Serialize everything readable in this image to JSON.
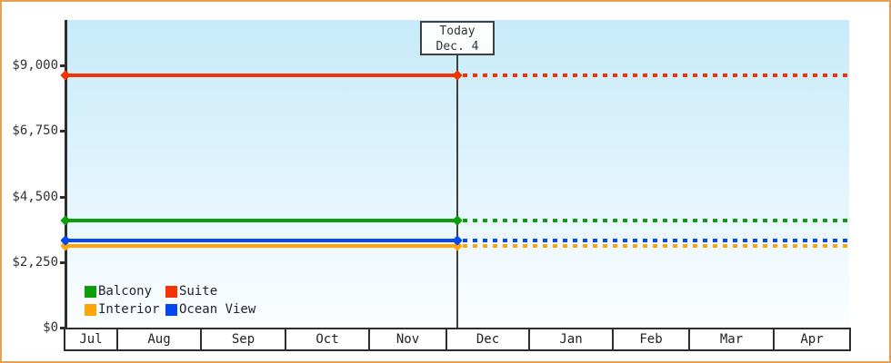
{
  "page": {
    "border_color": "#e2a155",
    "axis_color": "#2e2e2e",
    "plot_bg_top": "#c7eafa",
    "plot_bg_bottom": "#fcfeff"
  },
  "today": {
    "line1": "Today",
    "line2": "Dec. 4"
  },
  "chart_data": {
    "type": "line",
    "title": "",
    "x_categories": [
      "Jul",
      "Aug",
      "Sep",
      "Oct",
      "Nov",
      "Dec",
      "Jan",
      "Feb",
      "Mar",
      "Apr"
    ],
    "y_ticks": [
      {
        "label": "$9,000",
        "value": 9000
      },
      {
        "label": "$6,750",
        "value": 6750
      },
      {
        "label": "$4,500",
        "value": 4500
      },
      {
        "label": "$2,250",
        "value": 2250
      },
      {
        "label": "$0",
        "value": 0
      }
    ],
    "ylim": [
      0,
      9000
    ],
    "grid": false,
    "legend_position": "bottom-left-inside",
    "today_marker": "Dec. 4",
    "style_note": "flat price lines; solid with diamond endpoints before today, dotted after today",
    "series": [
      {
        "name": "Balcony",
        "color": "#0a9e0a",
        "value": 3675
      },
      {
        "name": "Suite",
        "color": "#f53300",
        "value": 8650
      },
      {
        "name": "Interior",
        "color": "#ffa408",
        "value": 2790
      },
      {
        "name": "Ocean View",
        "color": "#0647f0",
        "value": 3000
      }
    ]
  },
  "legend": {
    "items": [
      {
        "label": "Balcony",
        "color": "#0a9e0a"
      },
      {
        "label": "Suite",
        "color": "#f53300"
      },
      {
        "label": "Interior",
        "color": "#ffa408"
      },
      {
        "label": "Ocean View",
        "color": "#0647f0"
      }
    ]
  }
}
